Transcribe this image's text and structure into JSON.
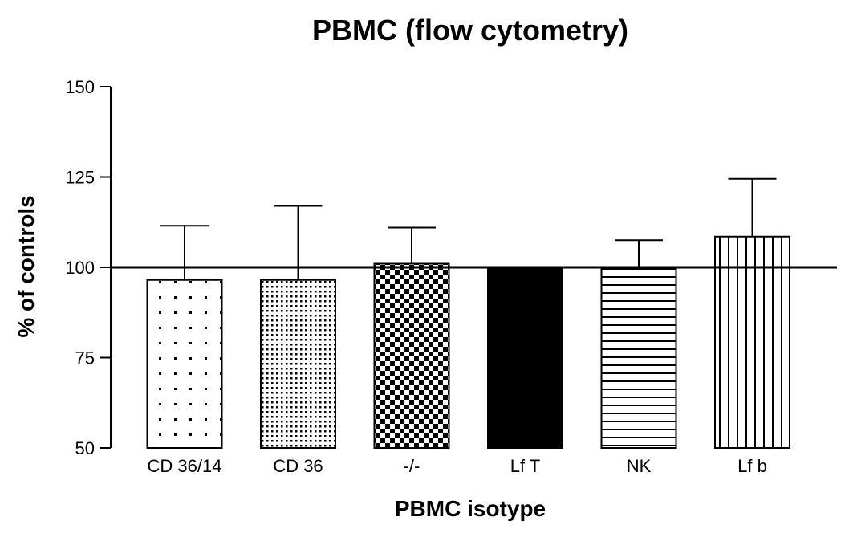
{
  "chart_data": {
    "type": "bar",
    "title": "PBMC (flow cytometry)",
    "xlabel": "PBMC isotype",
    "ylabel": "% of controls",
    "categories": [
      "CD 36/14",
      "CD 36",
      "-/-",
      "Lf T",
      "NK",
      "Lf b"
    ],
    "values": [
      96.5,
      96.5,
      101,
      100,
      100,
      108.5
    ],
    "error_upper": [
      111.5,
      117,
      111,
      100,
      107.5,
      124.5
    ],
    "patterns": [
      "sparse-dots",
      "dense-dots",
      "checkerboard",
      "solid",
      "horizontal-lines",
      "vertical-lines"
    ],
    "ylim": [
      50,
      150
    ],
    "yticks": [
      50,
      75,
      100,
      125,
      150
    ],
    "reference_line": 100,
    "grid": false,
    "colors": {
      "bar_stroke": "#000000",
      "fill_solid": "#000000",
      "background": "#ffffff"
    }
  }
}
